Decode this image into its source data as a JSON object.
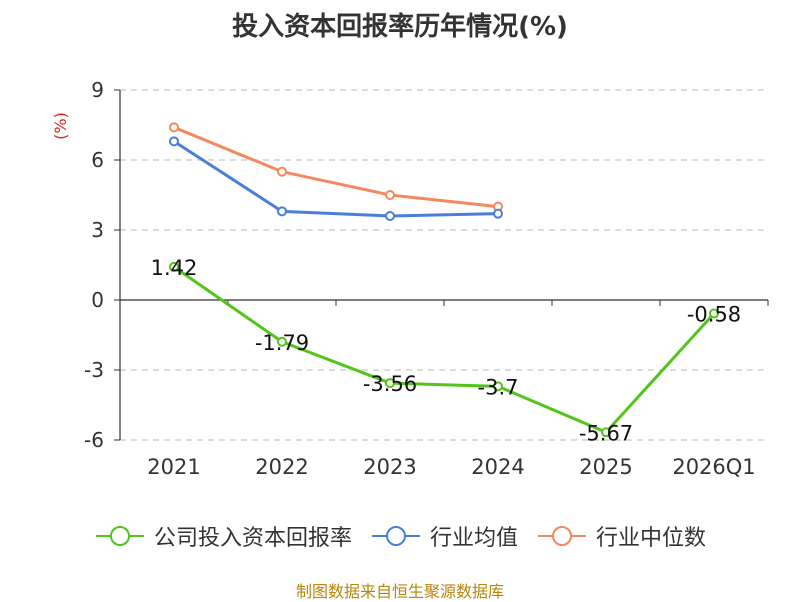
{
  "title": "投入资本回报率历年情况(%)",
  "unit_label": "(%)",
  "colors": {
    "company": "#52c41a",
    "industry_avg": "#4a7fd9",
    "industry_median": "#f4895f",
    "unit_label": "#e02020",
    "footer": "#b8860b"
  },
  "chart_data": {
    "type": "line",
    "title": "投入资本回报率历年情况(%)",
    "categories": [
      "2021",
      "2022",
      "2023",
      "2024",
      "2025",
      "2026Q1"
    ],
    "ylim": [
      -6,
      9
    ],
    "yticks": [
      -6,
      -3,
      0,
      3,
      6,
      9
    ],
    "ylabel": "(%)",
    "grid": true,
    "legend_position": "bottom",
    "series": [
      {
        "name": "公司投入资本回报率",
        "values": [
          1.42,
          -1.79,
          -3.56,
          -3.7,
          -5.67,
          -0.58
        ],
        "labels": [
          "1.42",
          "-1.79",
          "-3.56",
          "-3.7",
          "-5.67",
          "-0.58"
        ]
      },
      {
        "name": "行业均值",
        "values": [
          6.8,
          3.8,
          3.6,
          3.7,
          null,
          null
        ]
      },
      {
        "name": "行业中位数",
        "values": [
          7.4,
          5.5,
          4.5,
          4.0,
          null,
          null
        ]
      }
    ]
  },
  "footer": "制图数据来自恒生聚源数据库"
}
